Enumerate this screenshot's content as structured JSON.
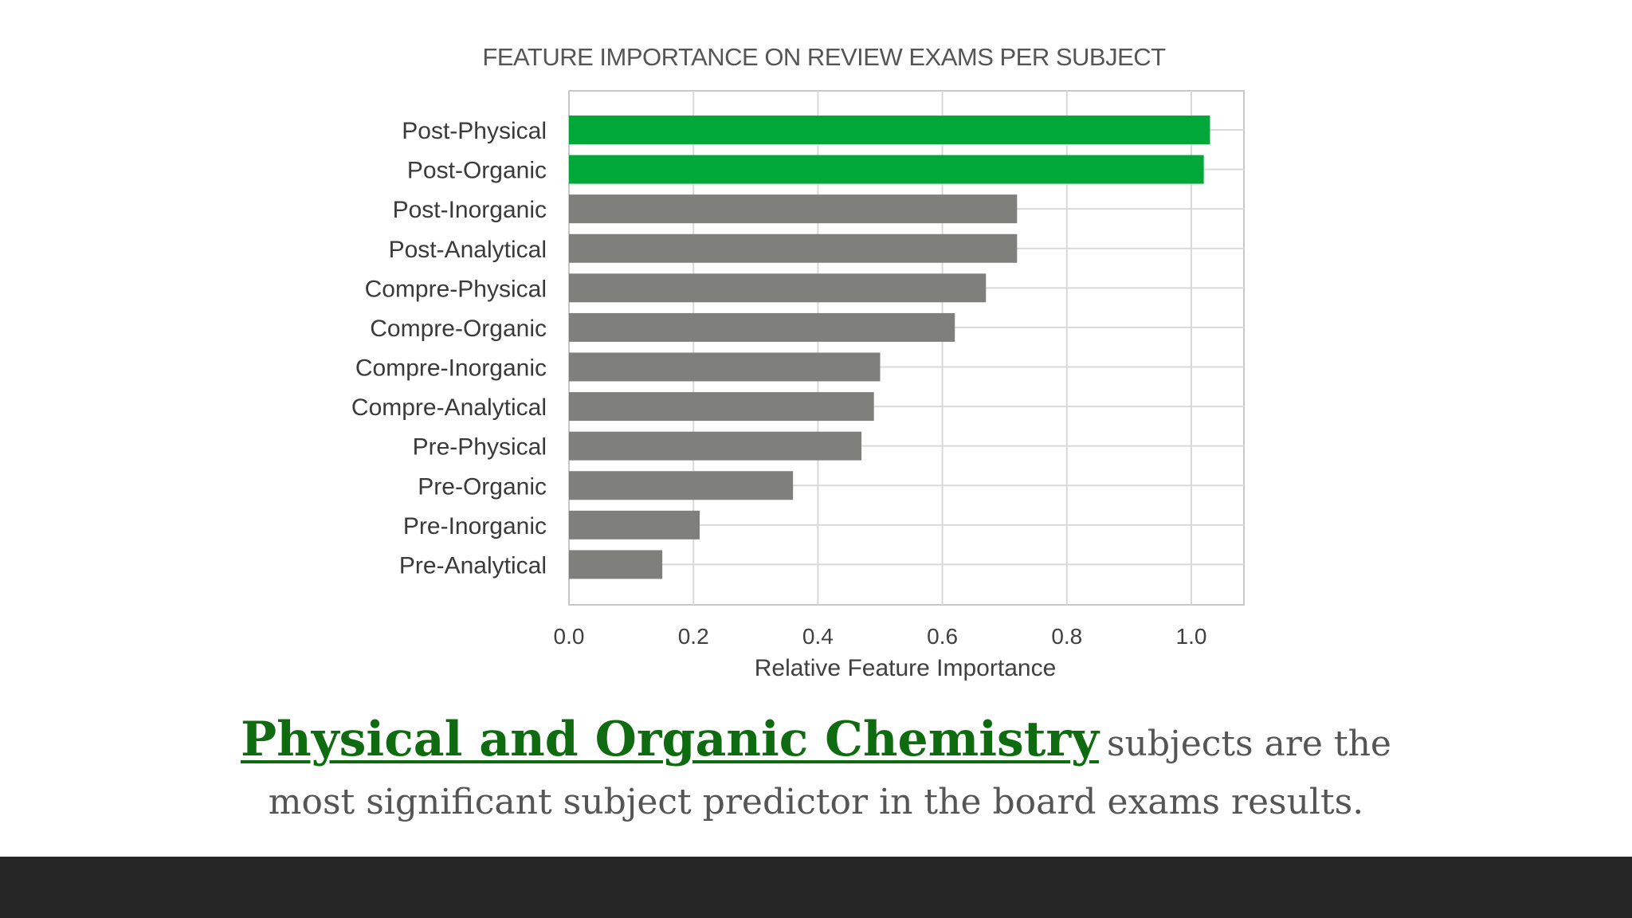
{
  "chart_data": {
    "type": "bar",
    "orientation": "horizontal",
    "title": "FEATURE IMPORTANCE ON REVIEW EXAMS PER SUBJECT",
    "xlabel": "Relative Feature Importance",
    "ylabel": "",
    "xlim": [
      0,
      1.08
    ],
    "xticks": [
      "0.0",
      "0.2",
      "0.4",
      "0.6",
      "0.8",
      "1.0"
    ],
    "grid": true,
    "categories": [
      "Post-Physical",
      "Post-Organic",
      "Post-Inorganic",
      "Post-Analytical",
      "Compre-Physical",
      "Compre-Organic",
      "Compre-Inorganic",
      "Compre-Analytical",
      "Pre-Physical",
      "Pre-Organic",
      "Pre-Inorganic",
      "Pre-Analytical"
    ],
    "values": [
      1.03,
      1.02,
      0.72,
      0.72,
      0.67,
      0.62,
      0.5,
      0.49,
      0.47,
      0.36,
      0.21,
      0.15
    ],
    "highlight": [
      true,
      true,
      false,
      false,
      false,
      false,
      false,
      false,
      false,
      false,
      false,
      false
    ],
    "colors": {
      "highlight": "#00a83a",
      "default": "#7f7f7b",
      "grid": "#d9d9d9",
      "frame": "#c8c8c8"
    }
  },
  "caption": {
    "highlight": "Physical and Organic Chemistry",
    "line1_rest": "subjects are the",
    "line2": "most significant subject predictor in the board exams results."
  }
}
